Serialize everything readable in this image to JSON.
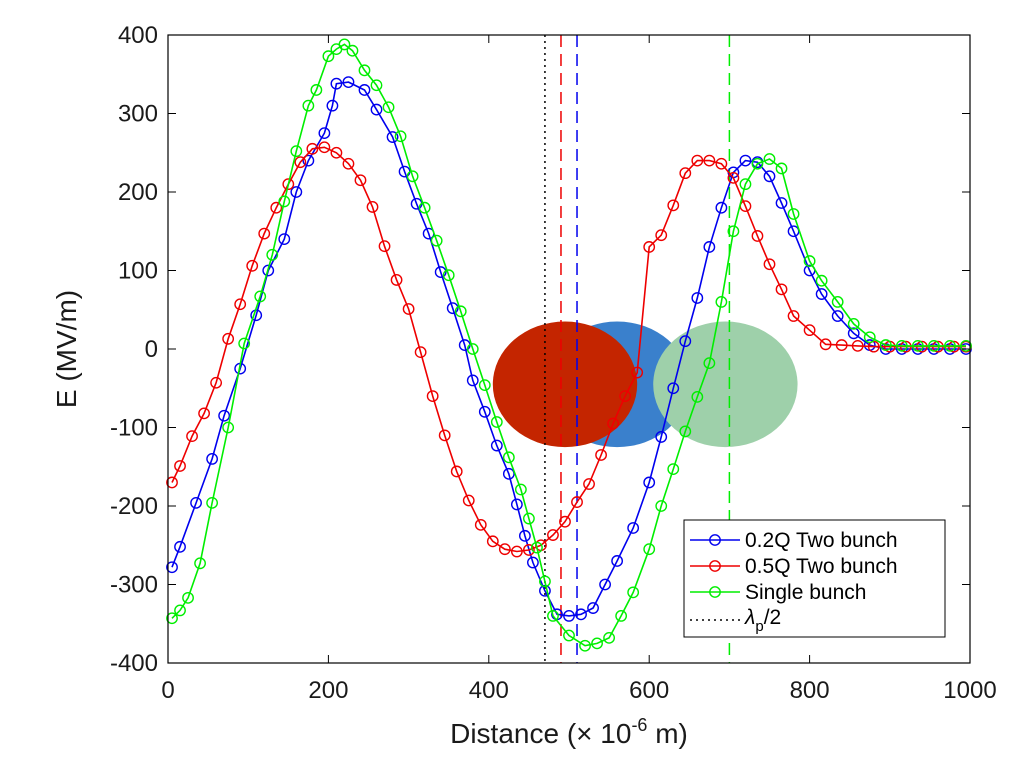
{
  "chart_data": {
    "type": "line",
    "title": "",
    "xlabel": "Distance (× 10",
    "xlabel_exponent": "-6",
    "xlabel_suffix": " m)",
    "ylabel": "E (MV/m)",
    "xlim": [
      0,
      1000
    ],
    "ylim": [
      -400,
      400
    ],
    "xticks": [
      0,
      200,
      400,
      600,
      800,
      1000
    ],
    "xtick_labels": [
      "0",
      "200",
      "400",
      "600",
      "800",
      "1000"
    ],
    "yticks": [
      -400,
      -300,
      -200,
      -100,
      0,
      100,
      200,
      300,
      400
    ],
    "ytick_labels": [
      "-400",
      "-300",
      "-200",
      "-100",
      "0",
      "100",
      "200",
      "300",
      "400"
    ],
    "grid": false,
    "legend_position": "bottom-right",
    "series": [
      {
        "name": "0.2Q Two bunch",
        "color": "#0000ee",
        "marker": "circle",
        "x": [
          5,
          15,
          35,
          55,
          70,
          90,
          110,
          125,
          145,
          160,
          175,
          195,
          205,
          210,
          225,
          245,
          260,
          280,
          295,
          310,
          325,
          340,
          355,
          370,
          380,
          395,
          410,
          425,
          435,
          445,
          455,
          470,
          485,
          500,
          515,
          530,
          545,
          560,
          580,
          600,
          615,
          630,
          645,
          660,
          675,
          690,
          705,
          720,
          735,
          750,
          765,
          780,
          800,
          815,
          835,
          855,
          875,
          895,
          915,
          935,
          955,
          975,
          995
        ],
        "y": [
          -278,
          -252,
          -196,
          -140,
          -85,
          -25,
          43,
          100,
          140,
          200,
          240,
          275,
          310,
          338,
          340,
          330,
          305,
          270,
          226,
          185,
          147,
          98,
          52,
          5,
          -40,
          -80,
          -123,
          -159,
          -198,
          -238,
          -272,
          -308,
          -338,
          -340,
          -338,
          -330,
          -300,
          -270,
          -228,
          -170,
          -112,
          -50,
          10,
          65,
          130,
          180,
          225,
          240,
          238,
          220,
          186,
          150,
          100,
          70,
          42,
          20,
          5,
          0,
          0,
          0,
          0,
          0,
          0
        ]
      },
      {
        "name": "0.5Q Two bunch",
        "color": "#ee0000",
        "marker": "circle",
        "x": [
          5,
          15,
          30,
          45,
          60,
          75,
          90,
          105,
          120,
          135,
          150,
          165,
          180,
          195,
          210,
          225,
          240,
          255,
          270,
          285,
          300,
          315,
          330,
          345,
          360,
          375,
          390,
          405,
          420,
          435,
          450,
          465,
          480,
          495,
          510,
          525,
          540,
          555,
          570,
          585,
          600,
          615,
          630,
          645,
          660,
          675,
          690,
          705,
          720,
          735,
          750,
          765,
          780,
          800,
          820,
          840,
          860,
          880,
          900,
          920,
          940,
          960,
          980,
          995
        ],
        "y": [
          -170,
          -149,
          -111,
          -82,
          -43,
          13,
          57,
          106,
          147,
          180,
          210,
          238,
          255,
          257,
          250,
          236,
          215,
          181,
          131,
          88,
          51,
          -4,
          -60,
          -110,
          -156,
          -193,
          -224,
          -245,
          -255,
          -258,
          -256,
          -250,
          -237,
          -220,
          -195,
          -172,
          -135,
          -95,
          -60,
          -30,
          130,
          145,
          183,
          224,
          240,
          240,
          236,
          218,
          182,
          144,
          108,
          76,
          42,
          24,
          6,
          5,
          4,
          3,
          3,
          3,
          3,
          3,
          3,
          3
        ]
      },
      {
        "name": "Single bunch",
        "color": "#00ee00",
        "marker": "circle",
        "x": [
          5,
          15,
          25,
          40,
          55,
          75,
          95,
          115,
          130,
          145,
          160,
          175,
          185,
          200,
          210,
          220,
          230,
          245,
          260,
          275,
          290,
          305,
          320,
          335,
          350,
          365,
          380,
          395,
          410,
          425,
          440,
          450,
          460,
          470,
          480,
          500,
          520,
          535,
          550,
          565,
          580,
          600,
          615,
          630,
          645,
          660,
          675,
          690,
          705,
          720,
          735,
          750,
          765,
          780,
          800,
          815,
          835,
          855,
          875,
          895,
          915,
          935,
          955,
          975,
          995
        ],
        "y": [
          -343,
          -333,
          -317,
          -273,
          -196,
          -100,
          7,
          67,
          120,
          188,
          252,
          310,
          330,
          373,
          382,
          388,
          380,
          355,
          336,
          308,
          271,
          220,
          180,
          138,
          94,
          48,
          0,
          -46,
          -93,
          -138,
          -179,
          -216,
          -253,
          -296,
          -340,
          -365,
          -378,
          -375,
          -368,
          -340,
          -310,
          -255,
          -200,
          -153,
          -105,
          -61,
          -18,
          60,
          150,
          210,
          236,
          242,
          230,
          172,
          112,
          87,
          60,
          32,
          15,
          5,
          4,
          4,
          4,
          4,
          4
        ]
      },
      {
        "name": "λp/2",
        "legend_base": "λ",
        "legend_sub": "p",
        "legend_tail": "/2",
        "color": "#000000",
        "style": "dotted",
        "vertical_x": 470
      }
    ],
    "vertical_lines": [
      {
        "x": 470,
        "color": "#000000",
        "style": "dotted"
      },
      {
        "x": 490,
        "color": "#ee0000",
        "style": "dashed"
      },
      {
        "x": 510,
        "color": "#0000ee",
        "style": "dashed"
      },
      {
        "x": 700,
        "color": "#00ee00",
        "style": "dashed"
      }
    ],
    "bunches": [
      {
        "name": "blue-bunch",
        "center_x": 560,
        "center_y": -45,
        "width_x": 180,
        "height_y": 160,
        "color": "#3a80cc"
      },
      {
        "name": "red-bunch",
        "center_x": 495,
        "center_y": -45,
        "width_x": 180,
        "height_y": 160,
        "color": "#c42500"
      },
      {
        "name": "green-bunch",
        "center_x": 695,
        "center_y": -45,
        "width_x": 180,
        "height_y": 160,
        "color": "#9ed0aa"
      }
    ]
  }
}
